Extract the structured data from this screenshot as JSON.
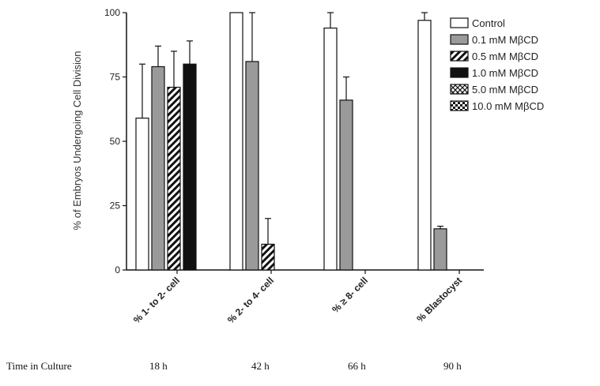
{
  "chart_data": {
    "type": "bar",
    "ylabel": "% of Embryos Undergoing Cell Division",
    "ylim": [
      0,
      100
    ],
    "yticks": [
      0,
      25,
      50,
      75,
      100
    ],
    "categories": [
      "% 1- to 2- cell",
      "% 2- to 4- cell",
      "% ≥ 8- cell",
      "% Blastocyst"
    ],
    "series": [
      {
        "name": "Control",
        "values": [
          59,
          100,
          94,
          97
        ],
        "errors": [
          21,
          0,
          6,
          3
        ],
        "fill": "white"
      },
      {
        "name": "0.1  mM MβCD",
        "values": [
          79,
          81,
          66,
          16
        ],
        "errors": [
          8,
          19,
          9,
          1
        ],
        "fill": "gray"
      },
      {
        "name": "0.5  mM MβCD",
        "values": [
          71,
          10,
          0,
          0
        ],
        "errors": [
          14,
          10,
          0,
          0
        ],
        "fill": "diagonal"
      },
      {
        "name": "1.0  mM MβCD",
        "values": [
          80,
          0,
          0,
          0
        ],
        "errors": [
          9,
          0,
          0,
          0
        ],
        "fill": "black"
      },
      {
        "name": "5.0  mM MβCD",
        "values": [
          0,
          0,
          0,
          0
        ],
        "errors": [
          0,
          0,
          0,
          0
        ],
        "fill": "crosshatch"
      },
      {
        "name": "10.0  mM MβCD",
        "values": [
          0,
          0,
          0,
          0
        ],
        "errors": [
          0,
          0,
          0,
          0
        ],
        "fill": "checker"
      }
    ],
    "legend_position": "top-right",
    "grid": false
  },
  "time_row": {
    "label": "Time in Culture",
    "values": [
      "18 h",
      "42 h",
      "66 h",
      "90 h"
    ]
  }
}
